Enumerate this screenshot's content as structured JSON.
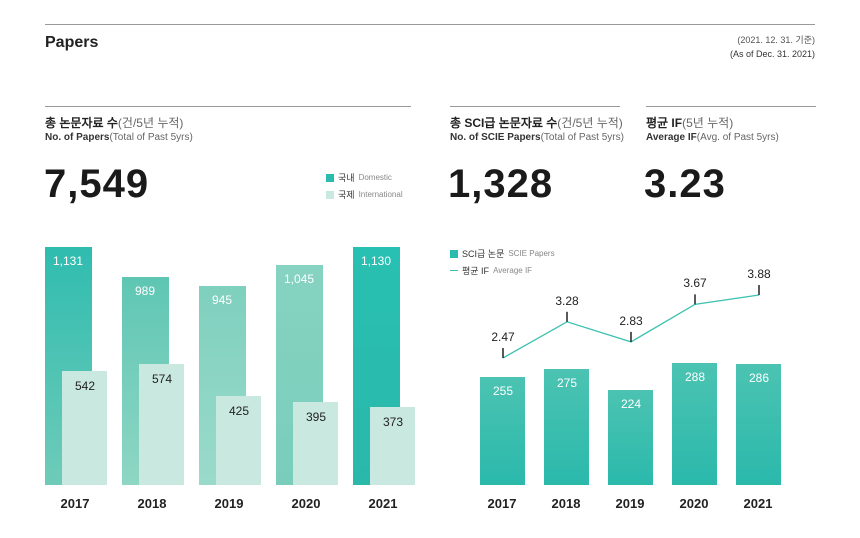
{
  "header": {
    "title": "Papers",
    "date_ko": "(2021. 12. 31. 기준)",
    "date_en": "(As of Dec. 31. 2021)"
  },
  "total": {
    "title_ko": "총 논문자료 수",
    "unit_ko": "(건/5년 누적)",
    "title_en": "No. of Papers",
    "unit_en": "(Total of Past 5yrs)",
    "value": "7,549"
  },
  "sci": {
    "title_ko": "총 SCI급 논문자료 수",
    "unit_ko": "(건/5년 누적)",
    "title_en": "No. of SCIE Papers",
    "unit_en": "(Total of Past 5yrs)",
    "value": "1,328"
  },
  "avg": {
    "title_ko": "평균 IF",
    "unit_ko": "(5년 누적)",
    "title_en": "Average IF",
    "unit_en": "(Avg. of Past 5yrs)",
    "value": "3.23"
  },
  "colors": {
    "domestic": "#2bbcae",
    "international": "#c9e8df",
    "sci": "#2bbcae",
    "line": "#3cc1b0"
  },
  "chart_data": [
    {
      "type": "bar",
      "categories": [
        "2017",
        "2018",
        "2019",
        "2020",
        "2021"
      ],
      "legend": [
        {
          "ko": "국내",
          "en": "Domestic"
        },
        {
          "ko": "국제",
          "en": "International"
        }
      ],
      "series": [
        {
          "name": "국내 Domestic",
          "values": [
            1131,
            989,
            945,
            1045,
            1130
          ]
        },
        {
          "name": "국제 International",
          "values": [
            542,
            574,
            425,
            395,
            373
          ]
        }
      ]
    },
    {
      "type": "bar+line",
      "categories": [
        "2017",
        "2018",
        "2019",
        "2020",
        "2021"
      ],
      "legend": [
        {
          "ko": "SCI급 논문",
          "en": "SCIE Papers"
        },
        {
          "ko": "평균 IF",
          "en": "Average IF"
        }
      ],
      "series": [
        {
          "name": "SCI급 논문 SCIE Papers",
          "type": "bar",
          "values": [
            255,
            275,
            224,
            288,
            286
          ]
        },
        {
          "name": "평균 IF Average IF",
          "type": "line",
          "values": [
            2.47,
            3.28,
            2.83,
            3.67,
            3.88
          ]
        }
      ]
    }
  ]
}
